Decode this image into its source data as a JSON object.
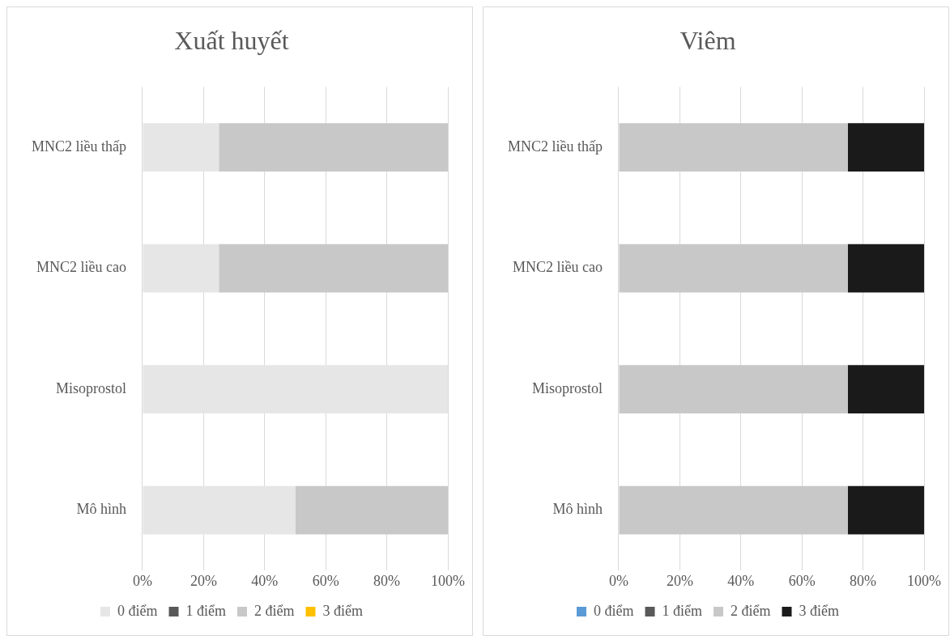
{
  "chart_data": [
    {
      "type": "bar",
      "title": "Xuất huyết",
      "orientation": "horizontal",
      "stacked": true,
      "categories": [
        "MNC2 liều thấp",
        "MNC2 liều cao",
        "Misoprostol",
        "Mô hình"
      ],
      "series": [
        {
          "name": "0 điểm",
          "color": "#e6e6e6",
          "values": [
            25,
            25,
            100,
            50
          ]
        },
        {
          "name": "1 điểm",
          "color": "#595959",
          "values": [
            0,
            0,
            0,
            0
          ]
        },
        {
          "name": "2 điểm",
          "color": "#c8c8c8",
          "values": [
            75,
            75,
            0,
            50
          ]
        },
        {
          "name": "3 điểm",
          "color": "#ffc000",
          "values": [
            0,
            0,
            0,
            0
          ]
        }
      ],
      "xlim": [
        0,
        100
      ],
      "xticks": [
        {
          "value": 0,
          "label": "0%"
        },
        {
          "value": 20,
          "label": "20%"
        },
        {
          "value": 40,
          "label": "40%"
        },
        {
          "value": 60,
          "label": "60%"
        },
        {
          "value": 80,
          "label": "80%"
        },
        {
          "value": 100,
          "label": "100%"
        }
      ],
      "grid": "x",
      "legend": "bottom"
    },
    {
      "type": "bar",
      "title": "Viêm",
      "orientation": "horizontal",
      "stacked": true,
      "categories": [
        "MNC2 liều thấp",
        "MNC2 liều cao",
        "Misoprostol",
        "Mô hình"
      ],
      "series": [
        {
          "name": "0 điểm",
          "color": "#5b9bd5",
          "values": [
            0,
            0,
            0,
            0
          ]
        },
        {
          "name": "1 điểm",
          "color": "#595959",
          "values": [
            0,
            0,
            0,
            0
          ]
        },
        {
          "name": "2 điểm",
          "color": "#c8c8c8",
          "values": [
            75,
            75,
            75,
            75
          ]
        },
        {
          "name": "3 điểm",
          "color": "#1a1a1a",
          "values": [
            25,
            25,
            25,
            25
          ]
        }
      ],
      "xlim": [
        0,
        100
      ],
      "xticks": [
        {
          "value": 0,
          "label": "0%"
        },
        {
          "value": 20,
          "label": "20%"
        },
        {
          "value": 40,
          "label": "40%"
        },
        {
          "value": 60,
          "label": "60%"
        },
        {
          "value": 80,
          "label": "80%"
        },
        {
          "value": 100,
          "label": "100%"
        }
      ],
      "grid": "x",
      "legend": "bottom"
    }
  ]
}
